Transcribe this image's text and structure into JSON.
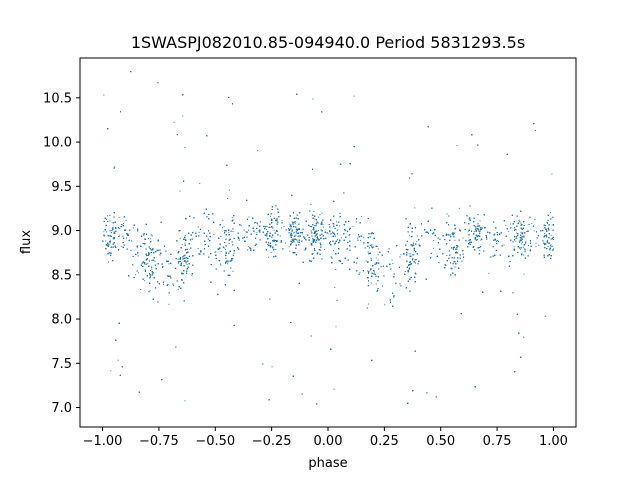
{
  "chart_data": {
    "type": "scatter",
    "title": "1SWASPJ082010.85-094940.0 Period 5831293.5s",
    "xlabel": "phase",
    "ylabel": "flux",
    "xlim": [
      -1.1,
      1.1
    ],
    "ylim": [
      6.78,
      10.95
    ],
    "x_ticks": [
      -1.0,
      -0.75,
      -0.5,
      -0.25,
      0.0,
      0.25,
      0.5,
      0.75,
      1.0
    ],
    "x_tick_labels": [
      "−1.00",
      "−0.75",
      "−0.50",
      "−0.25",
      "0.00",
      "0.25",
      "0.50",
      "0.75",
      "1.00"
    ],
    "y_ticks": [
      7.0,
      7.5,
      8.0,
      8.5,
      9.0,
      9.5,
      10.0,
      10.5
    ],
    "y_tick_labels": [
      "7.0",
      "7.5",
      "8.0",
      "8.5",
      "9.0",
      "9.5",
      "10.0",
      "10.5"
    ],
    "grid": false,
    "marker_color": "#1f77b4",
    "series": [
      {
        "x_range": [
          -1.0,
          1.0
        ],
        "profile": [
          {
            "phase": 0.0,
            "center": 8.92,
            "spread": 0.2
          },
          {
            "phase": 0.1,
            "center": 8.95,
            "spread": 0.2
          },
          {
            "phase": 0.22,
            "center": 8.62,
            "spread": 0.32
          },
          {
            "phase": 0.3,
            "center": 8.5,
            "spread": 0.35
          },
          {
            "phase": 0.4,
            "center": 8.85,
            "spread": 0.25
          },
          {
            "phase": 0.46,
            "center": 8.98,
            "spread": 0.2
          },
          {
            "phase": 0.55,
            "center": 8.75,
            "spread": 0.3
          },
          {
            "phase": 0.62,
            "center": 8.95,
            "spread": 0.2
          },
          {
            "phase": 0.8,
            "center": 8.98,
            "spread": 0.2
          },
          {
            "phase": 0.9,
            "center": 8.95,
            "spread": 0.2
          },
          {
            "phase": 1.0,
            "center": 8.92,
            "spread": 0.2
          }
        ],
        "dense_phases": [
          -0.97,
          -0.8,
          -0.64,
          -0.44,
          -0.25,
          -0.15,
          -0.05,
          0.03,
          0.2,
          0.37,
          0.55,
          0.65,
          0.85,
          0.98
        ],
        "point_count": 9000
      }
    ]
  }
}
